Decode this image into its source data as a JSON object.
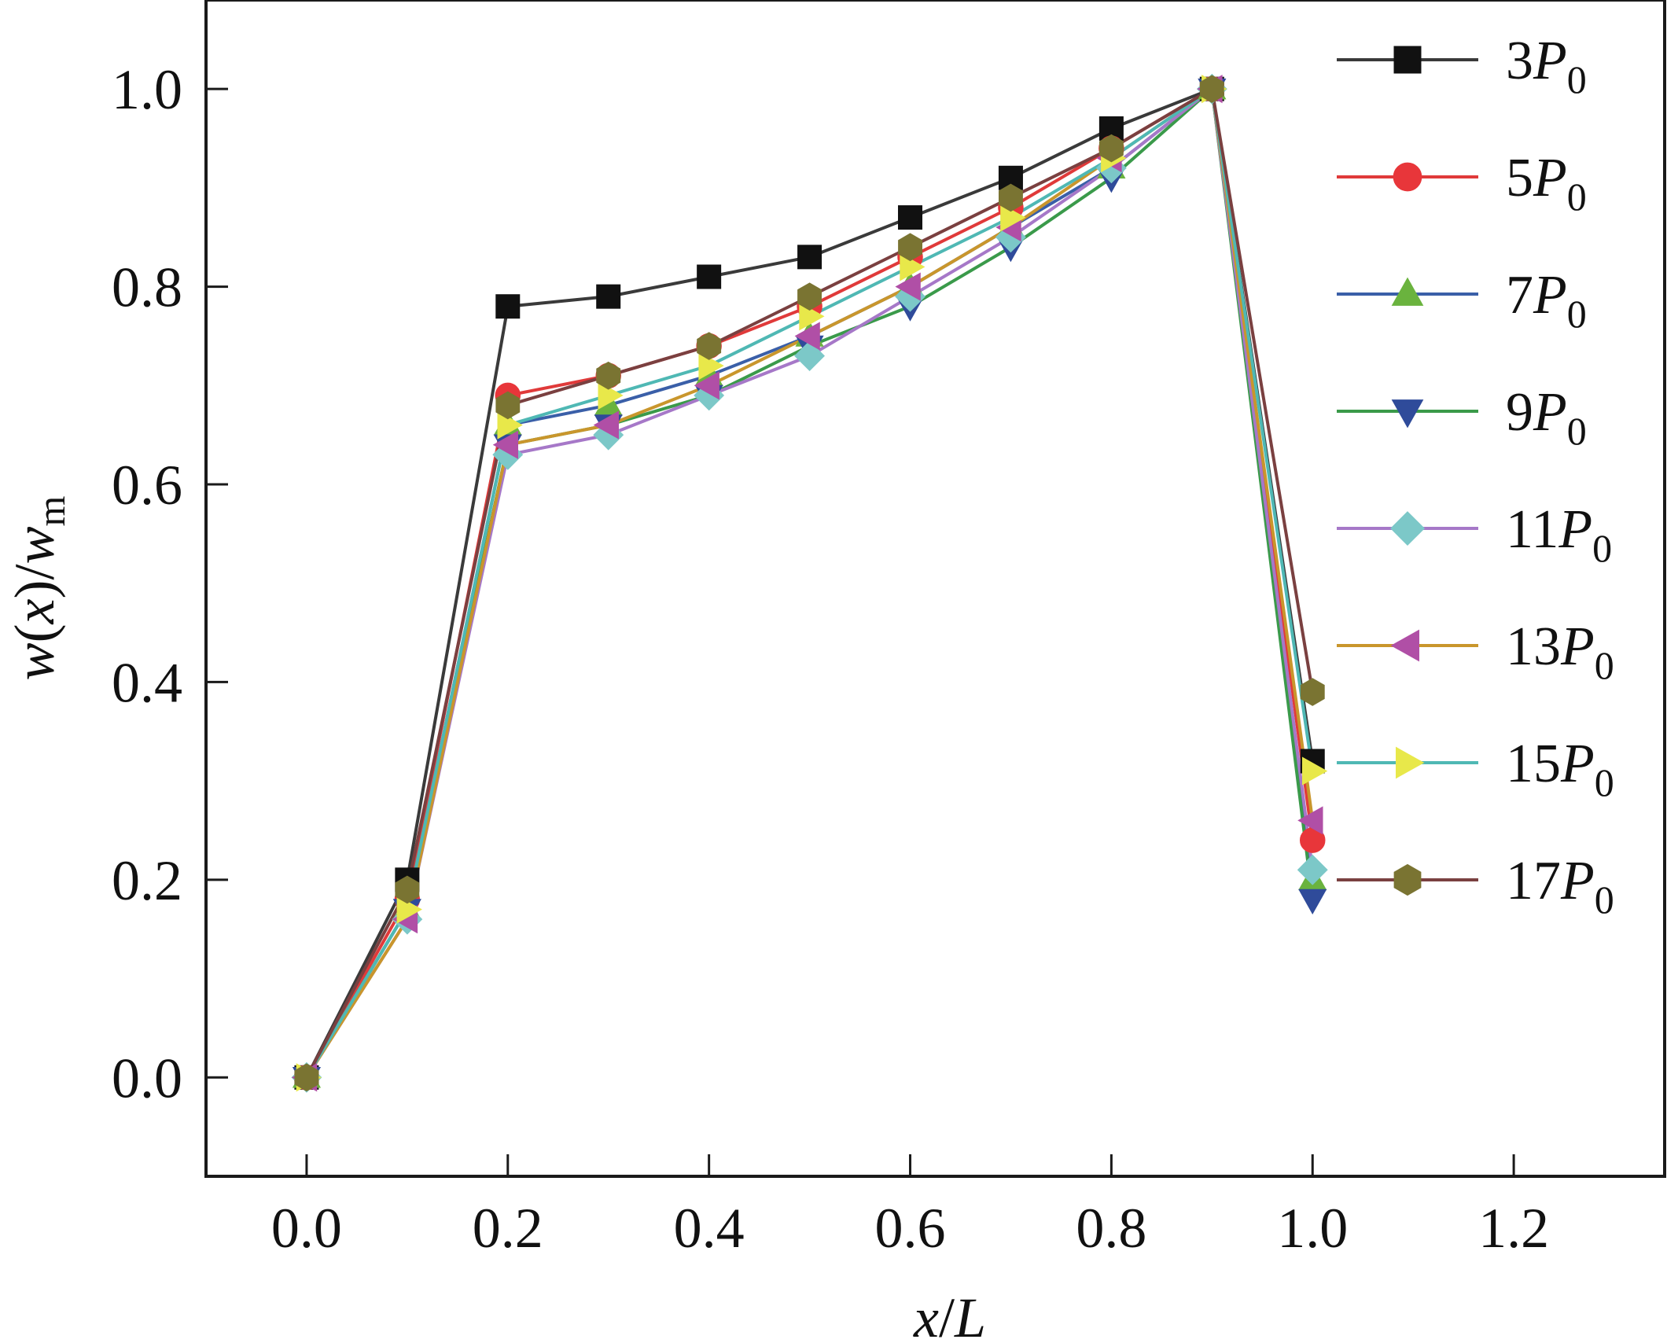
{
  "chart_data": {
    "type": "line",
    "title": "",
    "xlabel": {
      "main": "x",
      "sep": "/",
      "denom": "L"
    },
    "ylabel": {
      "w": "w",
      "open": "(",
      "x": "x",
      "close": ")",
      "sep": "/",
      "wm": "w",
      "sub": "m"
    },
    "xlim": [
      -0.1,
      1.35
    ],
    "ylim": [
      -0.1,
      1.09
    ],
    "xticks": [
      0.0,
      0.2,
      0.4,
      0.6,
      0.8,
      1.0,
      1.2
    ],
    "xtick_labels": [
      "0.0",
      "0.2",
      "0.4",
      "0.6",
      "0.8",
      "1.0",
      "1.2"
    ],
    "yticks": [
      0.0,
      0.2,
      0.4,
      0.6,
      0.8,
      1.0
    ],
    "ytick_labels": [
      "0.0",
      "0.2",
      "0.4",
      "0.6",
      "0.8",
      "1.0"
    ],
    "grid": false,
    "legend_position": "top-right",
    "x": [
      0.0,
      0.1,
      0.2,
      0.3,
      0.4,
      0.5,
      0.6,
      0.7,
      0.8,
      0.9,
      1.0
    ],
    "series": [
      {
        "name": "3P0",
        "coef": "3",
        "letter": "P",
        "sub": "0",
        "line_color": "#3a3a3a",
        "marker_color": "#111111",
        "marker": "square",
        "values": [
          0.0,
          0.2,
          0.78,
          0.79,
          0.81,
          0.83,
          0.87,
          0.91,
          0.96,
          1.0,
          0.32
        ]
      },
      {
        "name": "5P0",
        "coef": "5",
        "letter": "P",
        "sub": "0",
        "line_color": "#e03a3a",
        "marker_color": "#e8363a",
        "marker": "circle",
        "values": [
          0.0,
          0.18,
          0.69,
          0.71,
          0.74,
          0.78,
          0.83,
          0.88,
          0.94,
          1.0,
          0.24
        ]
      },
      {
        "name": "7P0",
        "coef": "7",
        "letter": "P",
        "sub": "0",
        "line_color": "#3a5fa8",
        "marker_color": "#6ab33e",
        "marker": "triangle-up",
        "values": [
          0.0,
          0.17,
          0.66,
          0.68,
          0.71,
          0.75,
          0.8,
          0.86,
          0.92,
          1.0,
          0.2
        ]
      },
      {
        "name": "9P0",
        "coef": "9",
        "letter": "P",
        "sub": "0",
        "line_color": "#3a9a4a",
        "marker_color": "#2f4b9a",
        "marker": "triangle-down",
        "values": [
          0.0,
          0.17,
          0.64,
          0.66,
          0.69,
          0.74,
          0.78,
          0.84,
          0.91,
          1.0,
          0.18
        ]
      },
      {
        "name": "11P0",
        "coef": "11",
        "letter": "P",
        "sub": "0",
        "line_color": "#a678c8",
        "marker_color": "#7cc8c8",
        "marker": "diamond",
        "values": [
          0.0,
          0.16,
          0.63,
          0.65,
          0.69,
          0.73,
          0.79,
          0.85,
          0.92,
          1.0,
          0.21
        ]
      },
      {
        "name": "13P0",
        "coef": "13",
        "letter": "P",
        "sub": "0",
        "line_color": "#c9962c",
        "marker_color": "#b04fa6",
        "marker": "triangle-left",
        "values": [
          0.0,
          0.16,
          0.64,
          0.66,
          0.7,
          0.75,
          0.8,
          0.86,
          0.93,
          1.0,
          0.26
        ]
      },
      {
        "name": "15P0",
        "coef": "15",
        "letter": "P",
        "sub": "0",
        "line_color": "#4fb8b4",
        "marker_color": "#e8e84a",
        "marker": "triangle-right",
        "values": [
          0.0,
          0.17,
          0.66,
          0.69,
          0.72,
          0.77,
          0.82,
          0.87,
          0.93,
          1.0,
          0.31
        ]
      },
      {
        "name": "17P0",
        "coef": "17",
        "letter": "P",
        "sub": "0",
        "line_color": "#7a4040",
        "marker_color": "#7a7432",
        "marker": "hexagon",
        "values": [
          0.0,
          0.19,
          0.68,
          0.71,
          0.74,
          0.79,
          0.84,
          0.89,
          0.94,
          1.0,
          0.39
        ]
      }
    ]
  }
}
